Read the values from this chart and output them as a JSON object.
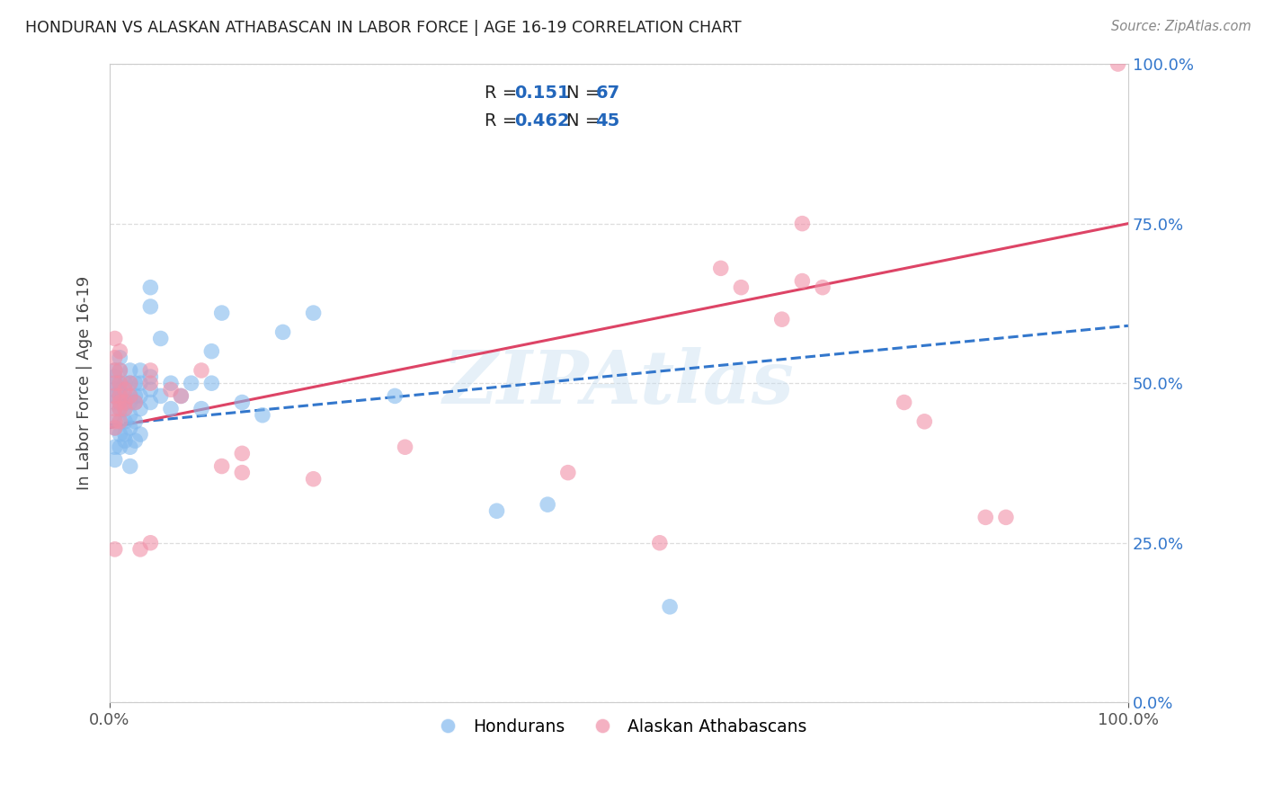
{
  "title": "HONDURAN VS ALASKAN ATHABASCAN IN LABOR FORCE | AGE 16-19 CORRELATION CHART",
  "source": "Source: ZipAtlas.com",
  "ylabel": "In Labor Force | Age 16-19",
  "xlim": [
    0,
    1
  ],
  "ylim": [
    0,
    1
  ],
  "ytick_vals": [
    0.0,
    0.25,
    0.5,
    0.75,
    1.0
  ],
  "ytick_labels": [
    "0.0%",
    "25.0%",
    "50.0%",
    "75.0%",
    "100.0%"
  ],
  "xtick_vals": [
    0.0,
    1.0
  ],
  "xtick_labels": [
    "0.0%",
    "100.0%"
  ],
  "watermark": "ZIPAtlas",
  "blue_color": "#82b9ee",
  "pink_color": "#f090a8",
  "blue_line_color": "#3377cc",
  "pink_line_color": "#dd4466",
  "blue_scatter": [
    [
      0.005,
      0.43
    ],
    [
      0.005,
      0.45
    ],
    [
      0.005,
      0.47
    ],
    [
      0.005,
      0.48
    ],
    [
      0.005,
      0.49
    ],
    [
      0.005,
      0.5
    ],
    [
      0.005,
      0.51
    ],
    [
      0.005,
      0.52
    ],
    [
      0.005,
      0.4
    ],
    [
      0.005,
      0.38
    ],
    [
      0.01,
      0.44
    ],
    [
      0.01,
      0.46
    ],
    [
      0.01,
      0.47
    ],
    [
      0.01,
      0.48
    ],
    [
      0.01,
      0.49
    ],
    [
      0.01,
      0.5
    ],
    [
      0.01,
      0.52
    ],
    [
      0.01,
      0.54
    ],
    [
      0.01,
      0.42
    ],
    [
      0.01,
      0.4
    ],
    [
      0.015,
      0.46
    ],
    [
      0.015,
      0.47
    ],
    [
      0.015,
      0.48
    ],
    [
      0.015,
      0.5
    ],
    [
      0.015,
      0.44
    ],
    [
      0.015,
      0.42
    ],
    [
      0.015,
      0.41
    ],
    [
      0.02,
      0.47
    ],
    [
      0.02,
      0.48
    ],
    [
      0.02,
      0.5
    ],
    [
      0.02,
      0.52
    ],
    [
      0.02,
      0.45
    ],
    [
      0.02,
      0.43
    ],
    [
      0.02,
      0.4
    ],
    [
      0.02,
      0.37
    ],
    [
      0.025,
      0.47
    ],
    [
      0.025,
      0.48
    ],
    [
      0.025,
      0.5
    ],
    [
      0.025,
      0.44
    ],
    [
      0.025,
      0.41
    ],
    [
      0.03,
      0.46
    ],
    [
      0.03,
      0.48
    ],
    [
      0.03,
      0.5
    ],
    [
      0.03,
      0.52
    ],
    [
      0.03,
      0.42
    ],
    [
      0.04,
      0.47
    ],
    [
      0.04,
      0.49
    ],
    [
      0.04,
      0.51
    ],
    [
      0.04,
      0.62
    ],
    [
      0.04,
      0.65
    ],
    [
      0.05,
      0.48
    ],
    [
      0.05,
      0.57
    ],
    [
      0.06,
      0.46
    ],
    [
      0.06,
      0.5
    ],
    [
      0.07,
      0.48
    ],
    [
      0.08,
      0.5
    ],
    [
      0.09,
      0.46
    ],
    [
      0.1,
      0.5
    ],
    [
      0.1,
      0.55
    ],
    [
      0.11,
      0.61
    ],
    [
      0.13,
      0.47
    ],
    [
      0.15,
      0.45
    ],
    [
      0.17,
      0.58
    ],
    [
      0.2,
      0.61
    ],
    [
      0.28,
      0.48
    ],
    [
      0.38,
      0.3
    ],
    [
      0.43,
      0.31
    ],
    [
      0.55,
      0.15
    ]
  ],
  "pink_scatter": [
    [
      0.005,
      0.57
    ],
    [
      0.005,
      0.54
    ],
    [
      0.005,
      0.52
    ],
    [
      0.005,
      0.5
    ],
    [
      0.005,
      0.48
    ],
    [
      0.005,
      0.46
    ],
    [
      0.005,
      0.44
    ],
    [
      0.005,
      0.43
    ],
    [
      0.005,
      0.24
    ],
    [
      0.01,
      0.55
    ],
    [
      0.01,
      0.52
    ],
    [
      0.01,
      0.5
    ],
    [
      0.01,
      0.48
    ],
    [
      0.01,
      0.47
    ],
    [
      0.01,
      0.46
    ],
    [
      0.01,
      0.44
    ],
    [
      0.015,
      0.49
    ],
    [
      0.015,
      0.47
    ],
    [
      0.015,
      0.46
    ],
    [
      0.02,
      0.5
    ],
    [
      0.02,
      0.48
    ],
    [
      0.025,
      0.47
    ],
    [
      0.03,
      0.24
    ],
    [
      0.04,
      0.52
    ],
    [
      0.04,
      0.5
    ],
    [
      0.04,
      0.25
    ],
    [
      0.06,
      0.49
    ],
    [
      0.07,
      0.48
    ],
    [
      0.09,
      0.52
    ],
    [
      0.11,
      0.37
    ],
    [
      0.13,
      0.36
    ],
    [
      0.13,
      0.39
    ],
    [
      0.2,
      0.35
    ],
    [
      0.29,
      0.4
    ],
    [
      0.45,
      0.36
    ],
    [
      0.54,
      0.25
    ],
    [
      0.6,
      0.68
    ],
    [
      0.62,
      0.65
    ],
    [
      0.66,
      0.6
    ],
    [
      0.68,
      0.66
    ],
    [
      0.68,
      0.75
    ],
    [
      0.7,
      0.65
    ],
    [
      0.78,
      0.47
    ],
    [
      0.8,
      0.44
    ],
    [
      0.86,
      0.29
    ],
    [
      0.88,
      0.29
    ],
    [
      0.99,
      1.0
    ]
  ],
  "blue_trend_x": [
    0.0,
    1.0
  ],
  "blue_trend_y": [
    0.435,
    0.59
  ],
  "pink_trend_x": [
    0.0,
    1.0
  ],
  "pink_trend_y": [
    0.43,
    0.75
  ],
  "grid_color": "#dddddd",
  "bg_color": "#ffffff",
  "title_color": "#222222",
  "axis_label_color": "#444444",
  "legend_r1_value": "0.151",
  "legend_r1_n": "67",
  "legend_r2_value": "0.462",
  "legend_r2_n": "45",
  "legend_num_color": "#2266bb",
  "legend_text_color": "#222222"
}
